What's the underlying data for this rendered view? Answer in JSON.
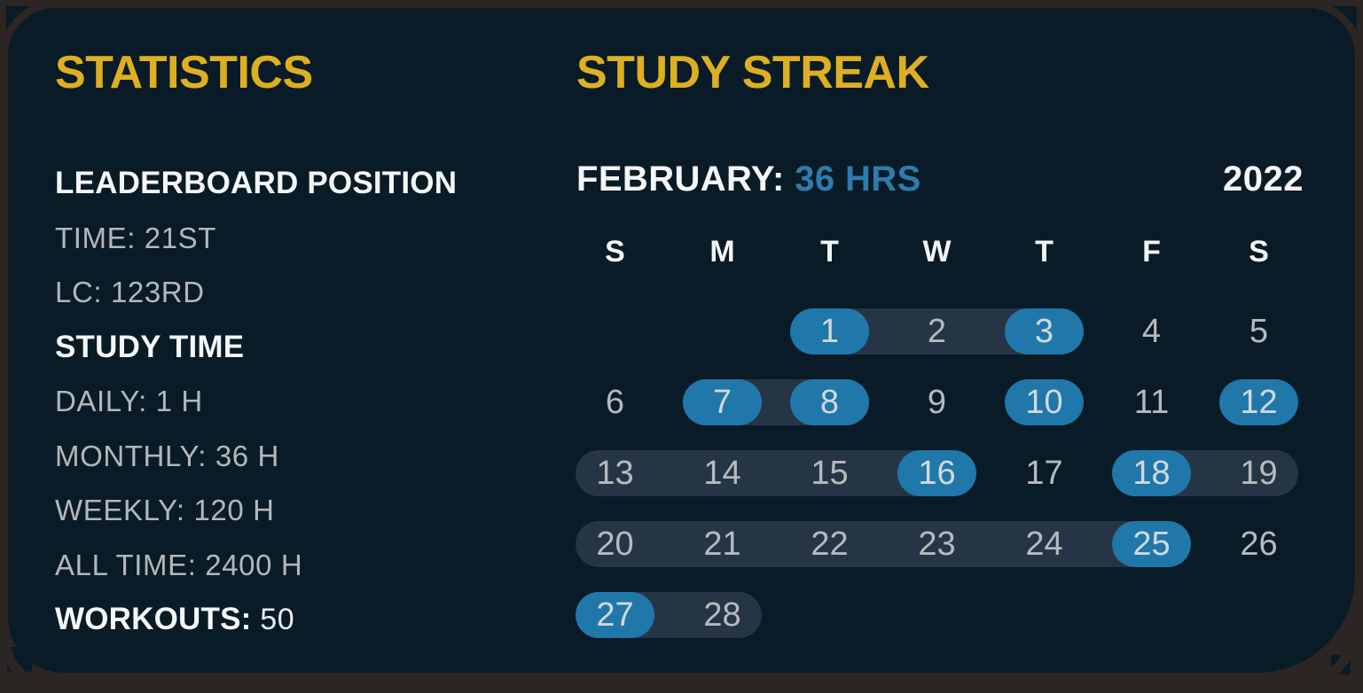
{
  "theme": {
    "page_bg": "#2b2623",
    "card_bg": "#091b26",
    "accent_yellow": "#dfaf22",
    "text_white": "#f4f6f7",
    "text_gray": "#b3b7b9",
    "pill_blue": "#1f77aa",
    "hours_blue_text": "#2d7cac",
    "streak_band": "#253546"
  },
  "statistics": {
    "title": "STATISTICS",
    "sections": [
      {
        "heading": "LEADERBOARD POSITION",
        "items": [
          {
            "label": "TIME:",
            "value": "21ST"
          },
          {
            "label": "LC:",
            "value": "123RD"
          }
        ]
      },
      {
        "heading": "STUDY TIME",
        "items": [
          {
            "label": "DAILY:",
            "value": "1 H"
          },
          {
            "label": "MONTHLY:",
            "value": "36 H"
          },
          {
            "label": "WEEKLY:",
            "value": "120 H"
          },
          {
            "label": "ALL TIME:",
            "value": "2400 H"
          }
        ]
      }
    ],
    "workouts": {
      "label": "WORKOUTS:",
      "value": "50"
    }
  },
  "study_streak": {
    "title": "STUDY STREAK",
    "month_label": "FEBRUARY:",
    "month_hours": "36 HRS",
    "year": "2022",
    "day_headers": [
      "S",
      "M",
      "T",
      "W",
      "T",
      "F",
      "S"
    ],
    "weeks": [
      [
        {
          "d": ""
        },
        {
          "d": ""
        },
        {
          "d": "1",
          "active": true,
          "band": "start"
        },
        {
          "d": "2",
          "band": "mid"
        },
        {
          "d": "3",
          "active": true,
          "band": "end"
        },
        {
          "d": "4"
        },
        {
          "d": "5"
        }
      ],
      [
        {
          "d": "6"
        },
        {
          "d": "7",
          "active": true,
          "band": "start"
        },
        {
          "d": "8",
          "active": true,
          "band": "end"
        },
        {
          "d": "9"
        },
        {
          "d": "10",
          "active": true
        },
        {
          "d": "11"
        },
        {
          "d": "12",
          "active": true
        }
      ],
      [
        {
          "d": "13",
          "band": "start"
        },
        {
          "d": "14",
          "band": "mid"
        },
        {
          "d": "15",
          "band": "mid"
        },
        {
          "d": "16",
          "active": true,
          "band": "end"
        },
        {
          "d": "17"
        },
        {
          "d": "18",
          "active": true,
          "band": "start"
        },
        {
          "d": "19",
          "band": "end"
        }
      ],
      [
        {
          "d": "20",
          "band": "start"
        },
        {
          "d": "21",
          "band": "mid"
        },
        {
          "d": "22",
          "band": "mid"
        },
        {
          "d": "23",
          "band": "mid"
        },
        {
          "d": "24",
          "band": "mid"
        },
        {
          "d": "25",
          "active": true,
          "band": "end"
        },
        {
          "d": "26"
        }
      ],
      [
        {
          "d": "27",
          "active": true,
          "band": "start"
        },
        {
          "d": "28",
          "band": "end"
        },
        {
          "d": ""
        },
        {
          "d": ""
        },
        {
          "d": ""
        },
        {
          "d": ""
        },
        {
          "d": ""
        }
      ]
    ]
  }
}
